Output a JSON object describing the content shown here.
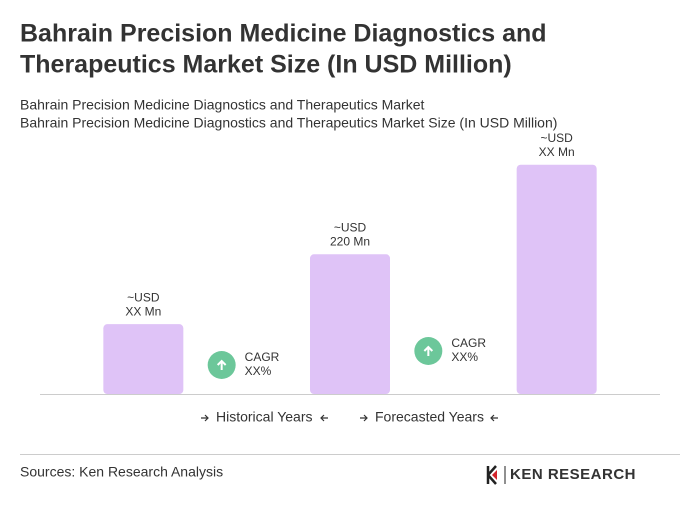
{
  "chart_data": {
    "type": "bar",
    "title": [
      "Bahrain Precision Medicine Diagnostics and",
      "Therapeutics Market Size (In USD Million)"
    ],
    "subtitle": [
      "Bahrain Precision Medicine Diagnostics and Therapeutics Market",
      "Bahrain Precision Medicine Diagnostics and Therapeutics Market Size (In USD Million)"
    ],
    "categories": [
      null,
      null,
      null
    ],
    "values": [
      110,
      220,
      361
    ],
    "value_labels": [
      [
        "~USD",
        "XX Mn"
      ],
      [
        "~USD",
        "220 Mn"
      ],
      [
        "~USD",
        "XX Mn"
      ]
    ],
    "color": "#dfc3f7",
    "ylim": [
      0,
      400
    ],
    "annotations": [
      [
        "CAGR",
        "XX%"
      ],
      [
        "CAGR",
        "XX%"
      ]
    ],
    "annotation_color": "#6cc79a",
    "legend": [
      "Historical Years",
      "Forecasted Years"
    ],
    "source": "Sources: Ken Research Analysis",
    "logo": "KEN RESEARCH"
  }
}
